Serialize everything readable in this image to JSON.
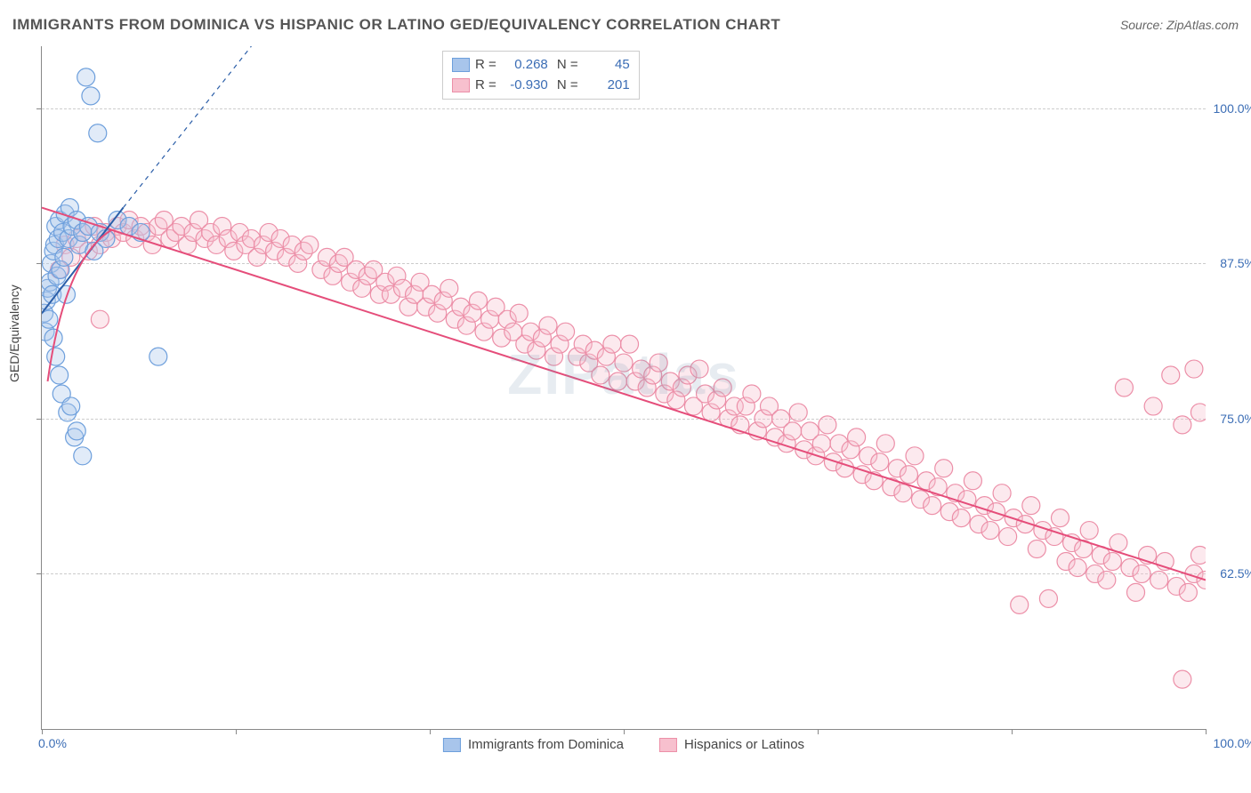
{
  "title": "IMMIGRANTS FROM DOMINICA VS HISPANIC OR LATINO GED/EQUIVALENCY CORRELATION CHART",
  "source": "Source: ZipAtlas.com",
  "watermark": "ZIPatlas",
  "ylabel": "GED/Equivalency",
  "chart": {
    "type": "scatter",
    "background_color": "#ffffff",
    "grid_color": "#cccccc",
    "axis_color": "#888888",
    "label_color": "#3b6db5",
    "xlim": [
      0,
      100
    ],
    "ylim": [
      50,
      105
    ],
    "ytick_labels": [
      "62.5%",
      "75.0%",
      "87.5%",
      "100.0%"
    ],
    "ytick_values": [
      62.5,
      75.0,
      87.5,
      100.0
    ],
    "xtick_labels_shown": {
      "left": "0.0%",
      "right": "100.0%"
    },
    "xtick_positions": [
      0,
      16.67,
      33.33,
      50,
      66.67,
      83.33,
      100
    ],
    "marker_radius": 10,
    "marker_fill_opacity": 0.35,
    "marker_stroke_width": 1.2,
    "line_width": 2
  },
  "series": [
    {
      "name": "Immigrants from Dominica",
      "short": "dominica",
      "color_fill": "#a8c5eb",
      "color_stroke": "#6d9fdc",
      "trend_color": "#2b5ea8",
      "R": "0.268",
      "N": "45",
      "trend": {
        "x1": 0,
        "y1": 83.5,
        "x2_solid": 7,
        "y2_solid": 92,
        "x2_dash": 18,
        "y2_dash": 105
      },
      "points": [
        [
          0.2,
          83.5
        ],
        [
          0.3,
          82.0
        ],
        [
          0.4,
          84.5
        ],
        [
          0.5,
          85.5
        ],
        [
          0.6,
          83.0
        ],
        [
          0.7,
          86.0
        ],
        [
          0.8,
          87.5
        ],
        [
          0.9,
          85.0
        ],
        [
          1.0,
          88.5
        ],
        [
          1.0,
          81.5
        ],
        [
          1.1,
          89.0
        ],
        [
          1.2,
          80.0
        ],
        [
          1.2,
          90.5
        ],
        [
          1.3,
          86.5
        ],
        [
          1.4,
          89.5
        ],
        [
          1.5,
          91.0
        ],
        [
          1.5,
          78.5
        ],
        [
          1.6,
          87.0
        ],
        [
          1.7,
          77.0
        ],
        [
          1.8,
          90.0
        ],
        [
          1.9,
          88.0
        ],
        [
          2.0,
          91.5
        ],
        [
          2.1,
          85.0
        ],
        [
          2.2,
          75.5
        ],
        [
          2.3,
          89.5
        ],
        [
          2.4,
          92.0
        ],
        [
          2.5,
          76.0
        ],
        [
          2.6,
          90.5
        ],
        [
          2.8,
          73.5
        ],
        [
          3.0,
          91.0
        ],
        [
          3.0,
          74.0
        ],
        [
          3.2,
          89.0
        ],
        [
          3.5,
          90.0
        ],
        [
          3.5,
          72.0
        ],
        [
          3.8,
          102.5
        ],
        [
          4.0,
          90.5
        ],
        [
          4.2,
          101.0
        ],
        [
          4.5,
          88.5
        ],
        [
          4.8,
          98.0
        ],
        [
          5.0,
          90.0
        ],
        [
          5.5,
          89.5
        ],
        [
          6.5,
          91.0
        ],
        [
          7.5,
          90.5
        ],
        [
          8.5,
          90.0
        ],
        [
          10.0,
          80.0
        ]
      ]
    },
    {
      "name": "Hispanics or Latinos",
      "short": "hispanics",
      "color_fill": "#f7c0ce",
      "color_stroke": "#ec8fa8",
      "trend_color": "#e54d7a",
      "R": "-0.930",
      "N": "201",
      "trend": {
        "x1": 0,
        "y1": 92,
        "x2": 100,
        "y2": 62
      },
      "points": [
        [
          1.5,
          87.0
        ],
        [
          2.0,
          89.0
        ],
        [
          2.5,
          88.0
        ],
        [
          3.0,
          89.5
        ],
        [
          3.5,
          90.0
        ],
        [
          4.0,
          88.5
        ],
        [
          4.5,
          90.5
        ],
        [
          5.0,
          89.0
        ],
        [
          5.0,
          83.0
        ],
        [
          5.5,
          90.0
        ],
        [
          6.0,
          89.5
        ],
        [
          6.5,
          90.5
        ],
        [
          7.0,
          90.0
        ],
        [
          7.5,
          91.0
        ],
        [
          8.0,
          89.5
        ],
        [
          8.5,
          90.5
        ],
        [
          9.0,
          90.0
        ],
        [
          9.5,
          89.0
        ],
        [
          10.0,
          90.5
        ],
        [
          10.5,
          91.0
        ],
        [
          11.0,
          89.5
        ],
        [
          11.5,
          90.0
        ],
        [
          12.0,
          90.5
        ],
        [
          12.5,
          89.0
        ],
        [
          13.0,
          90.0
        ],
        [
          13.5,
          91.0
        ],
        [
          14.0,
          89.5
        ],
        [
          14.5,
          90.0
        ],
        [
          15.0,
          89.0
        ],
        [
          15.5,
          90.5
        ],
        [
          16.0,
          89.5
        ],
        [
          16.5,
          88.5
        ],
        [
          17.0,
          90.0
        ],
        [
          17.5,
          89.0
        ],
        [
          18.0,
          89.5
        ],
        [
          18.5,
          88.0
        ],
        [
          19.0,
          89.0
        ],
        [
          19.5,
          90.0
        ],
        [
          20.0,
          88.5
        ],
        [
          20.5,
          89.5
        ],
        [
          21.0,
          88.0
        ],
        [
          21.5,
          89.0
        ],
        [
          22.0,
          87.5
        ],
        [
          22.5,
          88.5
        ],
        [
          23.0,
          89.0
        ],
        [
          24.0,
          87.0
        ],
        [
          24.5,
          88.0
        ],
        [
          25.0,
          86.5
        ],
        [
          25.5,
          87.5
        ],
        [
          26.0,
          88.0
        ],
        [
          26.5,
          86.0
        ],
        [
          27.0,
          87.0
        ],
        [
          27.5,
          85.5
        ],
        [
          28.0,
          86.5
        ],
        [
          28.5,
          87.0
        ],
        [
          29.0,
          85.0
        ],
        [
          29.5,
          86.0
        ],
        [
          30.0,
          85.0
        ],
        [
          30.5,
          86.5
        ],
        [
          31.0,
          85.5
        ],
        [
          31.5,
          84.0
        ],
        [
          32.0,
          85.0
        ],
        [
          32.5,
          86.0
        ],
        [
          33.0,
          84.0
        ],
        [
          33.5,
          85.0
        ],
        [
          34.0,
          83.5
        ],
        [
          34.5,
          84.5
        ],
        [
          35.0,
          85.5
        ],
        [
          35.5,
          83.0
        ],
        [
          36.0,
          84.0
        ],
        [
          36.5,
          82.5
        ],
        [
          37.0,
          83.5
        ],
        [
          37.5,
          84.5
        ],
        [
          38.0,
          82.0
        ],
        [
          38.5,
          83.0
        ],
        [
          39.0,
          84.0
        ],
        [
          39.5,
          81.5
        ],
        [
          40.0,
          83.0
        ],
        [
          40.5,
          82.0
        ],
        [
          41.0,
          83.5
        ],
        [
          41.5,
          81.0
        ],
        [
          42.0,
          82.0
        ],
        [
          42.5,
          80.5
        ],
        [
          43.0,
          81.5
        ],
        [
          43.5,
          82.5
        ],
        [
          44.0,
          80.0
        ],
        [
          44.5,
          81.0
        ],
        [
          45.0,
          82.0
        ],
        [
          46.0,
          80.0
        ],
        [
          46.5,
          81.0
        ],
        [
          47.0,
          79.5
        ],
        [
          47.5,
          80.5
        ],
        [
          48.0,
          78.5
        ],
        [
          48.5,
          80.0
        ],
        [
          49.0,
          81.0
        ],
        [
          49.5,
          78.0
        ],
        [
          50.0,
          79.5
        ],
        [
          50.5,
          81.0
        ],
        [
          51.0,
          78.0
        ],
        [
          51.5,
          79.0
        ],
        [
          52.0,
          77.5
        ],
        [
          52.5,
          78.5
        ],
        [
          53.0,
          79.5
        ],
        [
          53.5,
          77.0
        ],
        [
          54.0,
          78.0
        ],
        [
          54.5,
          76.5
        ],
        [
          55.0,
          77.5
        ],
        [
          55.5,
          78.5
        ],
        [
          56.0,
          76.0
        ],
        [
          56.5,
          79.0
        ],
        [
          57.0,
          77.0
        ],
        [
          57.5,
          75.5
        ],
        [
          58.0,
          76.5
        ],
        [
          58.5,
          77.5
        ],
        [
          59.0,
          75.0
        ],
        [
          59.5,
          76.0
        ],
        [
          60.0,
          74.5
        ],
        [
          60.5,
          76.0
        ],
        [
          61.0,
          77.0
        ],
        [
          61.5,
          74.0
        ],
        [
          62.0,
          75.0
        ],
        [
          62.5,
          76.0
        ],
        [
          63.0,
          73.5
        ],
        [
          63.5,
          75.0
        ],
        [
          64.0,
          73.0
        ],
        [
          64.5,
          74.0
        ],
        [
          65.0,
          75.5
        ],
        [
          65.5,
          72.5
        ],
        [
          66.0,
          74.0
        ],
        [
          66.5,
          72.0
        ],
        [
          67.0,
          73.0
        ],
        [
          67.5,
          74.5
        ],
        [
          68.0,
          71.5
        ],
        [
          68.5,
          73.0
        ],
        [
          69.0,
          71.0
        ],
        [
          69.5,
          72.5
        ],
        [
          70.0,
          73.5
        ],
        [
          70.5,
          70.5
        ],
        [
          71.0,
          72.0
        ],
        [
          71.5,
          70.0
        ],
        [
          72.0,
          71.5
        ],
        [
          72.5,
          73.0
        ],
        [
          73.0,
          69.5
        ],
        [
          73.5,
          71.0
        ],
        [
          74.0,
          69.0
        ],
        [
          74.5,
          70.5
        ],
        [
          75.0,
          72.0
        ],
        [
          75.5,
          68.5
        ],
        [
          76.0,
          70.0
        ],
        [
          76.5,
          68.0
        ],
        [
          77.0,
          69.5
        ],
        [
          77.5,
          71.0
        ],
        [
          78.0,
          67.5
        ],
        [
          78.5,
          69.0
        ],
        [
          79.0,
          67.0
        ],
        [
          79.5,
          68.5
        ],
        [
          80.0,
          70.0
        ],
        [
          80.5,
          66.5
        ],
        [
          81.0,
          68.0
        ],
        [
          81.5,
          66.0
        ],
        [
          82.0,
          67.5
        ],
        [
          82.5,
          69.0
        ],
        [
          83.0,
          65.5
        ],
        [
          83.5,
          67.0
        ],
        [
          84.0,
          60.0
        ],
        [
          84.5,
          66.5
        ],
        [
          85.0,
          68.0
        ],
        [
          85.5,
          64.5
        ],
        [
          86.0,
          66.0
        ],
        [
          86.5,
          60.5
        ],
        [
          87.0,
          65.5
        ],
        [
          87.5,
          67.0
        ],
        [
          88.0,
          63.5
        ],
        [
          88.5,
          65.0
        ],
        [
          89.0,
          63.0
        ],
        [
          89.5,
          64.5
        ],
        [
          90.0,
          66.0
        ],
        [
          90.5,
          62.5
        ],
        [
          91.0,
          64.0
        ],
        [
          91.5,
          62.0
        ],
        [
          92.0,
          63.5
        ],
        [
          92.5,
          65.0
        ],
        [
          93.0,
          77.5
        ],
        [
          93.5,
          63.0
        ],
        [
          94.0,
          61.0
        ],
        [
          94.5,
          62.5
        ],
        [
          95.0,
          64.0
        ],
        [
          95.5,
          76.0
        ],
        [
          96.0,
          62.0
        ],
        [
          96.5,
          63.5
        ],
        [
          97.0,
          78.5
        ],
        [
          97.5,
          61.5
        ],
        [
          98.0,
          74.5
        ],
        [
          98.0,
          54.0
        ],
        [
          98.5,
          61.0
        ],
        [
          99.0,
          62.5
        ],
        [
          99.0,
          79.0
        ],
        [
          99.5,
          64.0
        ],
        [
          99.5,
          75.5
        ],
        [
          100.0,
          62.0
        ]
      ]
    }
  ],
  "legend_bottom": [
    {
      "label": "Immigrants from Dominica",
      "fill": "#a8c5eb",
      "stroke": "#6d9fdc"
    },
    {
      "label": "Hispanics or Latinos",
      "fill": "#f7c0ce",
      "stroke": "#ec8fa8"
    }
  ]
}
